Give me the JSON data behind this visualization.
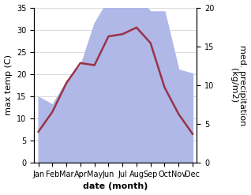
{
  "months": [
    "Jan",
    "Feb",
    "Mar",
    "Apr",
    "May",
    "Jun",
    "Jul",
    "Aug",
    "Sep",
    "Oct",
    "Nov",
    "Dec"
  ],
  "month_x": [
    0,
    1,
    2,
    3,
    4,
    5,
    6,
    7,
    8,
    9,
    10,
    11
  ],
  "temperature": [
    7,
    11.5,
    18,
    22.5,
    22,
    28.5,
    29,
    30.5,
    27,
    17,
    11,
    6.5
  ],
  "precipitation": [
    8.5,
    7.5,
    10.5,
    12.5,
    18,
    21,
    21.5,
    21.5,
    19.5,
    19.5,
    12,
    11.5
  ],
  "temp_color": "#993344",
  "precip_color": "#b0b8e8",
  "left_ylim": [
    0,
    35
  ],
  "right_ylim": [
    0,
    20
  ],
  "left_ylabel": "max temp (C)",
  "right_ylabel": "med. precipitation\n(kg/m2)",
  "xlabel": "date (month)",
  "bg_color": "#ffffff",
  "grid_color": "#cccccc",
  "temp_lw": 1.8,
  "label_fontsize": 8,
  "tick_fontsize": 7
}
